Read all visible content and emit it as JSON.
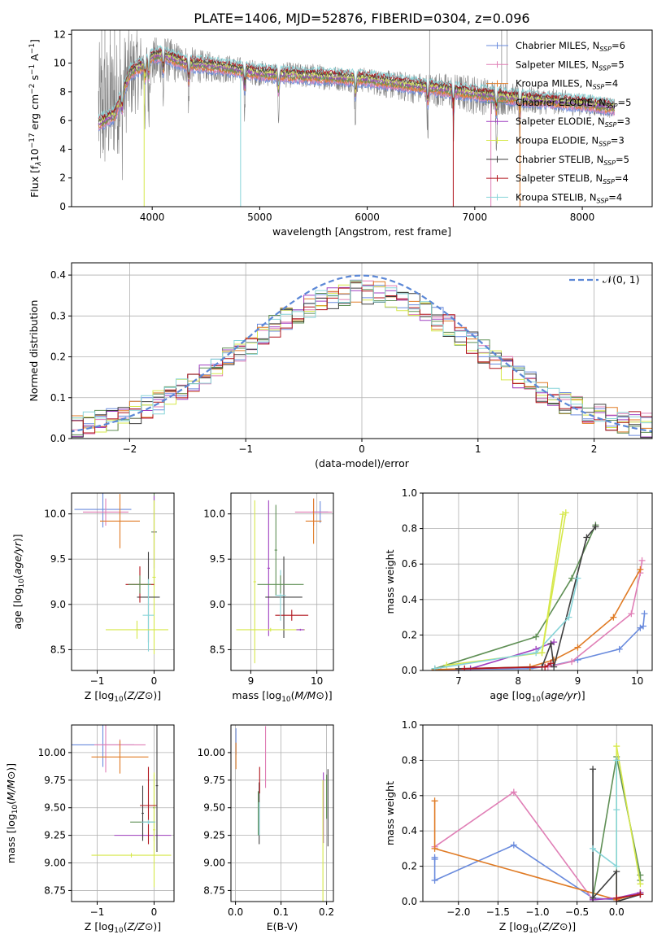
{
  "figure": {
    "title": "PLATE=1406, MJD=52876, FIBERID=0304, z=0.096"
  },
  "models": [
    {
      "name": "Chabrier MILES",
      "nssp": "6",
      "color": "#6a8bdd"
    },
    {
      "name": "Salpeter MILES",
      "nssp": "5",
      "color": "#e07fb6"
    },
    {
      "name": "Kroupa MILES",
      "nssp": "4",
      "color": "#e07b25"
    },
    {
      "name": "Chabrier ELODIE",
      "nssp": "5",
      "color": "#5f8f55"
    },
    {
      "name": "Salpeter ELODIE",
      "nssp": "3",
      "color": "#a040c0"
    },
    {
      "name": "Kroupa ELODIE",
      "nssp": "3",
      "color": "#d6e84a"
    },
    {
      "name": "Chabrier STELIB",
      "nssp": "5",
      "color": "#3f3f3f"
    },
    {
      "name": "Salpeter STELIB",
      "nssp": "4",
      "color": "#b0141c"
    },
    {
      "name": "Kroupa STELIB",
      "nssp": "4",
      "color": "#87d4d8"
    }
  ],
  "chart_data": [
    {
      "id": "spectrum",
      "type": "line",
      "xlabel": "wavelength [Angstrom, rest frame]",
      "ylabel_parts": [
        "Flux [f",
        "λ",
        "10",
        "−17",
        " erg cm",
        "−2",
        " s",
        "−1",
        " A",
        "−1",
        "]"
      ],
      "xlim": [
        3250,
        8650
      ],
      "ylim": [
        0,
        12.3
      ],
      "xticks": [
        4000,
        5000,
        6000,
        7000,
        8000
      ],
      "yticks": [
        0,
        2,
        4,
        6,
        8,
        10,
        12
      ],
      "legend_position": "top-right",
      "data_color": "#808080",
      "data_nodes": [
        [
          3500,
          6.5
        ],
        [
          3600,
          7.0
        ],
        [
          3700,
          7.8
        ],
        [
          3800,
          9.2
        ],
        [
          3900,
          9.6
        ],
        [
          4000,
          10.0
        ],
        [
          4100,
          10.3
        ],
        [
          4200,
          10.1
        ],
        [
          4400,
          9.8
        ],
        [
          4600,
          9.7
        ],
        [
          4800,
          9.5
        ],
        [
          5000,
          9.3
        ],
        [
          5200,
          9.2
        ],
        [
          5500,
          9.1
        ],
        [
          5800,
          8.9
        ],
        [
          6000,
          8.8
        ],
        [
          6200,
          8.5
        ],
        [
          6400,
          8.3
        ],
        [
          6600,
          8.2
        ],
        [
          6800,
          8.0
        ],
        [
          7000,
          7.8
        ],
        [
          7200,
          7.6
        ],
        [
          7500,
          7.4
        ],
        [
          7800,
          7.3
        ],
        [
          8000,
          7.1
        ],
        [
          8200,
          7.0
        ],
        [
          8300,
          6.8
        ]
      ],
      "noise_amplitude": [
        [
          3500,
          5.0
        ],
        [
          3700,
          4.0
        ],
        [
          4000,
          1.8
        ],
        [
          4500,
          1.1
        ],
        [
          5000,
          0.9
        ],
        [
          6000,
          0.9
        ],
        [
          7000,
          1.4
        ],
        [
          7500,
          1.0
        ],
        [
          8300,
          0.7
        ]
      ],
      "model_nodes": [
        [
          3500,
          5.8
        ],
        [
          3650,
          6.4
        ],
        [
          3800,
          9.4
        ],
        [
          3900,
          9.8
        ],
        [
          4000,
          10.5
        ],
        [
          4100,
          10.6
        ],
        [
          4300,
          10.0
        ],
        [
          4600,
          9.8
        ],
        [
          5000,
          9.3
        ],
        [
          5500,
          9.1
        ],
        [
          6000,
          8.9
        ],
        [
          6500,
          8.4
        ],
        [
          7000,
          7.9
        ],
        [
          7500,
          7.5
        ],
        [
          8000,
          7.2
        ],
        [
          8300,
          6.9
        ]
      ],
      "absorption_lines": [
        3720,
        3934,
        3968,
        4102,
        4340,
        4861,
        5175,
        5890,
        6563,
        6800,
        7200,
        7420
      ],
      "data_x_range": [
        3500,
        8300
      ]
    },
    {
      "id": "residuals",
      "type": "step",
      "xlabel": "(data-model)/error",
      "ylabel": "Normed distribution",
      "xlim": [
        -2.5,
        2.5
      ],
      "ylim": [
        0,
        0.43
      ],
      "xticks": [
        -2,
        -1,
        0,
        1,
        2
      ],
      "yticks": [
        0.0,
        0.1,
        0.2,
        0.3,
        0.4
      ],
      "yticklabels": [
        "0.0",
        "0.1",
        "0.2",
        "0.3",
        "0.4"
      ],
      "bin_width": 0.1,
      "legend_label": "𝒩(0, 1)",
      "normal_color": "#5b87d6",
      "legend_position": "top-right"
    },
    {
      "id": "age-vs-Z",
      "type": "errorbar",
      "xlabel": "Z [log10(Z/Z⊙)]",
      "ylabel": "age  [log10(age/yr)]",
      "xlim": [
        -1.45,
        0.35
      ],
      "ylim": [
        8.27,
        10.23
      ],
      "xticks": [
        -1,
        0
      ],
      "yticks": [
        8.5,
        9.0,
        9.5,
        10.0
      ],
      "yticklabels": [
        "8.5",
        "9.0",
        "9.5",
        "10.0"
      ],
      "points": [
        {
          "model": 0,
          "x": -0.9,
          "xerr": 0.5,
          "y": 10.05,
          "yerr": 0.2
        },
        {
          "model": 1,
          "x": -0.85,
          "xerr": 0.4,
          "y": 10.02,
          "yerr": 0.15
        },
        {
          "model": 2,
          "x": -0.6,
          "xerr": 0.35,
          "y": 9.92,
          "yerr": 0.3
        },
        {
          "model": 3,
          "x": 0.0,
          "xerr": 0.05,
          "y": 9.8,
          "yerr": 0.6
        },
        {
          "model": 4,
          "x": 0.0,
          "xerr": 0.02,
          "y": 9.8,
          "yerr": 0.4
        },
        {
          "model": 5,
          "x": 0.0,
          "xerr": 0.03,
          "y": 9.3,
          "yerr": 0.85
        },
        {
          "model": 6,
          "x": -0.1,
          "xerr": 0.2,
          "y": 9.08,
          "yerr": 0.5
        },
        {
          "model": 7,
          "x": -0.25,
          "xerr": 0.25,
          "y": 9.22,
          "yerr": 0.2
        },
        {
          "model": 8,
          "x": -0.1,
          "xerr": 0.1,
          "y": 8.88,
          "yerr": 0.4
        },
        {
          "model": 3,
          "x": -0.25,
          "xerr": 0.2,
          "y": 9.22,
          "yerr": 0.1
        },
        {
          "model": 5,
          "x": -0.3,
          "xerr": 0.55,
          "y": 8.72,
          "yerr": 0.1
        }
      ]
    },
    {
      "id": "age-vs-mass",
      "type": "errorbar",
      "xlabel": "mass [log10(M/M⊙)]",
      "ylabel": "",
      "xlim": [
        8.7,
        10.25
      ],
      "ylim": [
        8.27,
        10.23
      ],
      "xticks": [
        9,
        10
      ],
      "yticks": [
        8.5,
        9.0,
        9.5,
        10.0
      ],
      "yticklabels": [
        "8.5",
        "9.0",
        "9.5",
        "10.0"
      ],
      "points": [
        {
          "model": 0,
          "x": 10.05,
          "xerr": 0.12,
          "y": 10.02,
          "yerr": 0.12
        },
        {
          "model": 1,
          "x": 9.95,
          "xerr": 0.28,
          "y": 10.02,
          "yerr": 0.15
        },
        {
          "model": 2,
          "x": 9.95,
          "xerr": 0.12,
          "y": 9.92,
          "yerr": 0.25
        },
        {
          "model": 3,
          "x": 9.38,
          "xerr": 0.02,
          "y": 9.6,
          "yerr": 0.5
        },
        {
          "model": 4,
          "x": 9.27,
          "xerr": 0.02,
          "y": 9.4,
          "yerr": 0.75
        },
        {
          "model": 5,
          "x": 9.06,
          "xerr": 0.02,
          "y": 9.25,
          "yerr": 0.9
        },
        {
          "model": 6,
          "x": 9.5,
          "xerr": 0.28,
          "y": 9.08,
          "yerr": 0.45
        },
        {
          "model": 7,
          "x": 9.62,
          "xerr": 0.25,
          "y": 8.88,
          "yerr": 0.06
        },
        {
          "model": 8,
          "x": 9.45,
          "xerr": 0.08,
          "y": 9.1,
          "yerr": 0.28
        },
        {
          "model": 3,
          "x": 9.45,
          "xerr": 0.35,
          "y": 9.22,
          "yerr": 0.1
        },
        {
          "model": 5,
          "x": 9.3,
          "xerr": 0.52,
          "y": 8.72,
          "yerr": 0.02
        },
        {
          "model": 4,
          "x": 9.75,
          "xerr": 0.06,
          "y": 8.72,
          "yerr": 0.01
        }
      ]
    },
    {
      "id": "weight-vs-age",
      "type": "line",
      "xlabel": "age  [log10(age/yr)]",
      "ylabel": "mass weight",
      "xlim": [
        6.4,
        10.25
      ],
      "ylim": [
        0,
        1
      ],
      "xticks": [
        7,
        8,
        9,
        10
      ],
      "yticks": [
        0,
        0.2,
        0.4,
        0.6,
        0.8,
        1.0
      ],
      "yticklabels": [
        "0.0",
        "0.2",
        "0.4",
        "0.6",
        "0.8",
        "1.0"
      ],
      "series": [
        {
          "model": 0,
          "x": [
            6.6,
            8.2,
            8.6,
            9.0,
            9.7,
            10.05,
            10.1,
            10.12
          ],
          "y": [
            0.005,
            0.01,
            0.03,
            0.06,
            0.12,
            0.24,
            0.25,
            0.32
          ]
        },
        {
          "model": 1,
          "x": [
            6.7,
            8.5,
            8.9,
            9.9,
            10.05,
            10.08
          ],
          "y": [
            0.005,
            0.02,
            0.05,
            0.32,
            0.55,
            0.62
          ]
        },
        {
          "model": 2,
          "x": [
            6.6,
            8.2,
            8.6,
            9.0,
            9.6,
            10.05
          ],
          "y": [
            0.005,
            0.02,
            0.06,
            0.13,
            0.3,
            0.57
          ]
        },
        {
          "model": 3,
          "x": [
            6.6,
            8.3,
            8.9,
            9.3
          ],
          "y": [
            0.01,
            0.19,
            0.52,
            0.82
          ]
        },
        {
          "model": 4,
          "x": [
            7.2,
            8.3,
            8.6
          ],
          "y": [
            0.01,
            0.12,
            0.16
          ]
        },
        {
          "model": 5,
          "x": [
            6.8,
            8.4,
            8.8
          ],
          "y": [
            0.03,
            0.1,
            0.89
          ]
        },
        {
          "model": 6,
          "x": [
            7.0,
            8.4,
            8.55,
            8.6,
            9.15,
            9.3
          ],
          "y": [
            0.01,
            0.02,
            0.15,
            0.02,
            0.75,
            0.81
          ]
        },
        {
          "model": 7,
          "x": [
            7.1,
            8.45,
            8.55
          ],
          "y": [
            0.01,
            0.02,
            0.04
          ]
        },
        {
          "model": 8,
          "x": [
            6.6,
            8.3,
            8.85,
            9.0
          ],
          "y": [
            0.01,
            0.1,
            0.3,
            0.52
          ]
        },
        {
          "model": 5,
          "x": [
            8.4,
            8.75
          ],
          "y": [
            0.1,
            0.88
          ]
        }
      ]
    },
    {
      "id": "mass-vs-Z",
      "type": "errorbar",
      "xlabel": "Z [log10(Z/Z⊙)]",
      "ylabel": "mass [log10(M/M⊙)]",
      "xlim": [
        -1.45,
        0.35
      ],
      "ylim": [
        8.65,
        10.25
      ],
      "xticks": [
        -1,
        0
      ],
      "yticks": [
        8.75,
        9.0,
        9.25,
        9.5,
        9.75,
        10.0
      ],
      "yticklabels": [
        "8.75",
        "9.00",
        "9.25",
        "9.50",
        "9.75",
        "10.00"
      ],
      "points": [
        {
          "model": 0,
          "x": -0.9,
          "xerr": 0.55,
          "y": 10.07,
          "yerr": 0.2
        },
        {
          "model": 1,
          "x": -0.85,
          "xerr": 0.02,
          "y": 10.07,
          "yerr": 0.25
        },
        {
          "model": 1,
          "x": -0.6,
          "xerr": 0.45,
          "y": 10.07,
          "yerr": 0.05
        },
        {
          "model": 2,
          "x": -0.6,
          "xerr": 0.5,
          "y": 9.96,
          "yerr": 0.15
        },
        {
          "model": 3,
          "x": 0.0,
          "xerr": 0.02,
          "y": 9.5,
          "yerr": 0.3
        },
        {
          "model": 3,
          "x": -0.2,
          "xerr": 0.22,
          "y": 9.37,
          "yerr": 0.02
        },
        {
          "model": 4,
          "x": -0.2,
          "xerr": 0.5,
          "y": 9.25,
          "yerr": 0.02
        },
        {
          "model": 5,
          "x": -0.4,
          "xerr": 0.7,
          "y": 9.07,
          "yerr": 0.02
        },
        {
          "model": 5,
          "x": 0.0,
          "xerr": 0.02,
          "y": 9.3,
          "yerr": 0.52
        },
        {
          "model": 6,
          "x": -0.2,
          "xerr": 0.02,
          "y": 9.45,
          "yerr": 0.25
        },
        {
          "model": 7,
          "x": -0.1,
          "xerr": 0.15,
          "y": 9.52,
          "yerr": 0.35
        },
        {
          "model": 8,
          "x": -0.1,
          "xerr": 0.12,
          "y": 9.37,
          "yerr": 0.02
        },
        {
          "model": 6,
          "x": 0.05,
          "xerr": 0.02,
          "y": 9.7,
          "yerr": 0.6
        }
      ]
    },
    {
      "id": "mass-vs-EBV",
      "type": "errorbar",
      "xlabel": "E(B-V)",
      "ylabel": "",
      "xlim": [
        -0.01,
        0.215
      ],
      "ylim": [
        8.65,
        10.25
      ],
      "xticks": [
        0.0,
        0.1,
        0.2
      ],
      "xticklabels": [
        "0.0",
        "0.1",
        "0.2"
      ],
      "yticks": [
        8.75,
        9.0,
        9.25,
        9.5,
        9.75,
        10.0
      ],
      "yticklabels": [
        "8.75",
        "9.00",
        "9.25",
        "9.50",
        "9.75",
        "10.00"
      ],
      "points": [
        {
          "model": 0,
          "x": 0.001,
          "xerr": 0.0,
          "y": 10.1,
          "yerr": 0.12
        },
        {
          "model": 2,
          "x": 0.001,
          "xerr": 0.0,
          "y": 9.97,
          "yerr": 0.12
        },
        {
          "model": 1,
          "x": 0.066,
          "xerr": 0.0,
          "y": 9.96,
          "yerr": 0.28
        },
        {
          "model": 3,
          "x": 0.05,
          "xerr": 0.0,
          "y": 9.45,
          "yerr": 0.2
        },
        {
          "model": 6,
          "x": 0.052,
          "xerr": 0.0,
          "y": 9.45,
          "yerr": 0.28
        },
        {
          "model": 7,
          "x": 0.053,
          "xerr": 0.0,
          "y": 9.75,
          "yerr": 0.12
        },
        {
          "model": 8,
          "x": 0.052,
          "xerr": 0.0,
          "y": 9.4,
          "yerr": 0.15
        },
        {
          "model": 4,
          "x": 0.193,
          "xerr": 0.0,
          "y": 9.5,
          "yerr": 0.32
        },
        {
          "model": 5,
          "x": 0.192,
          "xerr": 0.0,
          "y": 9.2,
          "yerr": 0.55
        },
        {
          "model": 3,
          "x": 0.2,
          "xerr": 0.0,
          "y": 9.6,
          "yerr": 0.2
        },
        {
          "model": 6,
          "x": 0.203,
          "xerr": 0.0,
          "y": 9.5,
          "yerr": 0.35
        }
      ]
    },
    {
      "id": "weight-vs-Z",
      "type": "line",
      "xlabel": "Z [log10(Z/Z⊙)]",
      "ylabel": "mass weight",
      "xlim": [
        -2.45,
        0.45
      ],
      "ylim": [
        0,
        1
      ],
      "xticks": [
        -2.0,
        -1.5,
        -1.0,
        -0.5,
        0.0
      ],
      "xticklabels": [
        "−2.0",
        "−1.5",
        "−1.0",
        "−0.5",
        "0.0"
      ],
      "yticks": [
        0,
        0.2,
        0.4,
        0.6,
        0.8,
        1.0
      ],
      "yticklabels": [
        "0.0",
        "0.2",
        "0.4",
        "0.6",
        "0.8",
        "1.0"
      ],
      "series": [
        {
          "model": 0,
          "x": [
            -2.3,
            -2.3,
            -2.3,
            -1.3,
            -0.3,
            0.0,
            0.3
          ],
          "y": [
            0.25,
            0.24,
            0.12,
            0.32,
            0.02,
            0.01,
            0.05
          ]
        },
        {
          "model": 1,
          "x": [
            -2.3,
            -1.3,
            -0.3,
            0.0,
            0.3
          ],
          "y": [
            0.31,
            0.62,
            0.01,
            0.02,
            0.05
          ]
        },
        {
          "model": 2,
          "x": [
            -2.3,
            -2.3,
            0.0,
            0.3
          ],
          "y": [
            0.57,
            0.3,
            0.01,
            0.05
          ]
        },
        {
          "model": 3,
          "x": [
            -0.3,
            0.0,
            0.3,
            0.3
          ],
          "y": [
            0.02,
            0.82,
            0.15,
            0.12
          ]
        },
        {
          "model": 4,
          "x": [
            -0.3,
            0.0,
            0.3
          ],
          "y": [
            0.01,
            0.02,
            0.05
          ]
        },
        {
          "model": 5,
          "x": [
            0.0,
            0.0,
            0.3
          ],
          "y": [
            0.02,
            0.88,
            0.1
          ]
        },
        {
          "model": 6,
          "x": [
            -0.3,
            -0.3,
            0.0,
            0.0,
            0.3
          ],
          "y": [
            0.75,
            0.02,
            0.17,
            0.0,
            0.04
          ]
        },
        {
          "model": 7,
          "x": [
            0.0,
            0.3
          ],
          "y": [
            0.02,
            0.04
          ]
        },
        {
          "model": 8,
          "x": [
            -0.3,
            0.0,
            0.0,
            0.0
          ],
          "y": [
            0.3,
            0.2,
            0.52,
            0.8
          ]
        }
      ]
    }
  ]
}
